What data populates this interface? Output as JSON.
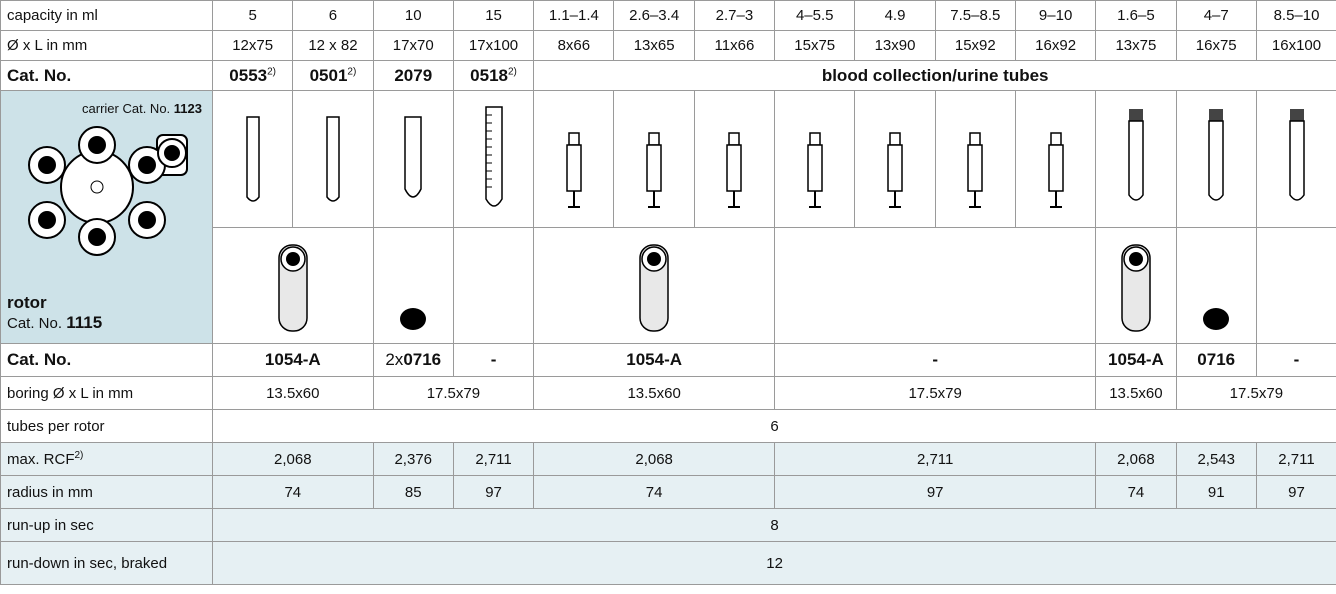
{
  "capacity": {
    "label": "capacity in ml",
    "values": [
      "5",
      "6",
      "10",
      "15",
      "1.1–1.4",
      "2.6–3.4",
      "2.7–3",
      "4–5.5",
      "4.9",
      "7.5–8.5",
      "9–10",
      "1.6–5",
      "4–7",
      "8.5–10"
    ]
  },
  "dimensions": {
    "label": "Ø x L in mm",
    "values": [
      "12x75",
      "12 x 82",
      "17x70",
      "17x100",
      "8x66",
      "13x65",
      "11x66",
      "15x75",
      "13x90",
      "15x92",
      "16x92",
      "13x75",
      "16x75",
      "16x100"
    ]
  },
  "tube_cat_no": {
    "label": "Cat. No.",
    "items": [
      {
        "number": "0553",
        "note": "2)"
      },
      {
        "number": "0501",
        "note": "2)"
      },
      {
        "number": "2079"
      },
      {
        "number": "0518",
        "note": "2)"
      }
    ],
    "group": "blood collection/urine tubes"
  },
  "carrier": {
    "label": "carrier Cat. No.",
    "number": "1123"
  },
  "rotor": {
    "title": "rotor",
    "label": "Cat. No.",
    "number": "1115"
  },
  "adapter_cat_no": {
    "label": "Cat. No.",
    "cells": [
      "1054-A",
      {
        "prefix": "2x",
        "number": "0716"
      },
      "-",
      "1054-A",
      "-",
      "1054-A",
      "0716",
      "-"
    ]
  },
  "boring": {
    "label": "boring Ø x L in mm",
    "cells": [
      "13.5x60",
      "17.5x79",
      "13.5x60",
      "17.5x79",
      "13.5x60",
      "17.5x79"
    ]
  },
  "tubes_per_rotor": {
    "label": "tubes per rotor",
    "value": "6"
  },
  "max_rcf": {
    "label": "max. RCF",
    "note": "2)",
    "cells": [
      "2,068",
      "2,376",
      "2,711",
      "2,068",
      "2,711",
      "2,068",
      "2,543",
      "2,711"
    ]
  },
  "radius": {
    "label": "radius in mm",
    "cells": [
      "74",
      "85",
      "97",
      "74",
      "97",
      "74",
      "91",
      "97"
    ]
  },
  "run_up": {
    "label": "run-up in sec",
    "value": "8"
  },
  "run_down": {
    "label": "run-down in sec, braked",
    "value": "12"
  }
}
